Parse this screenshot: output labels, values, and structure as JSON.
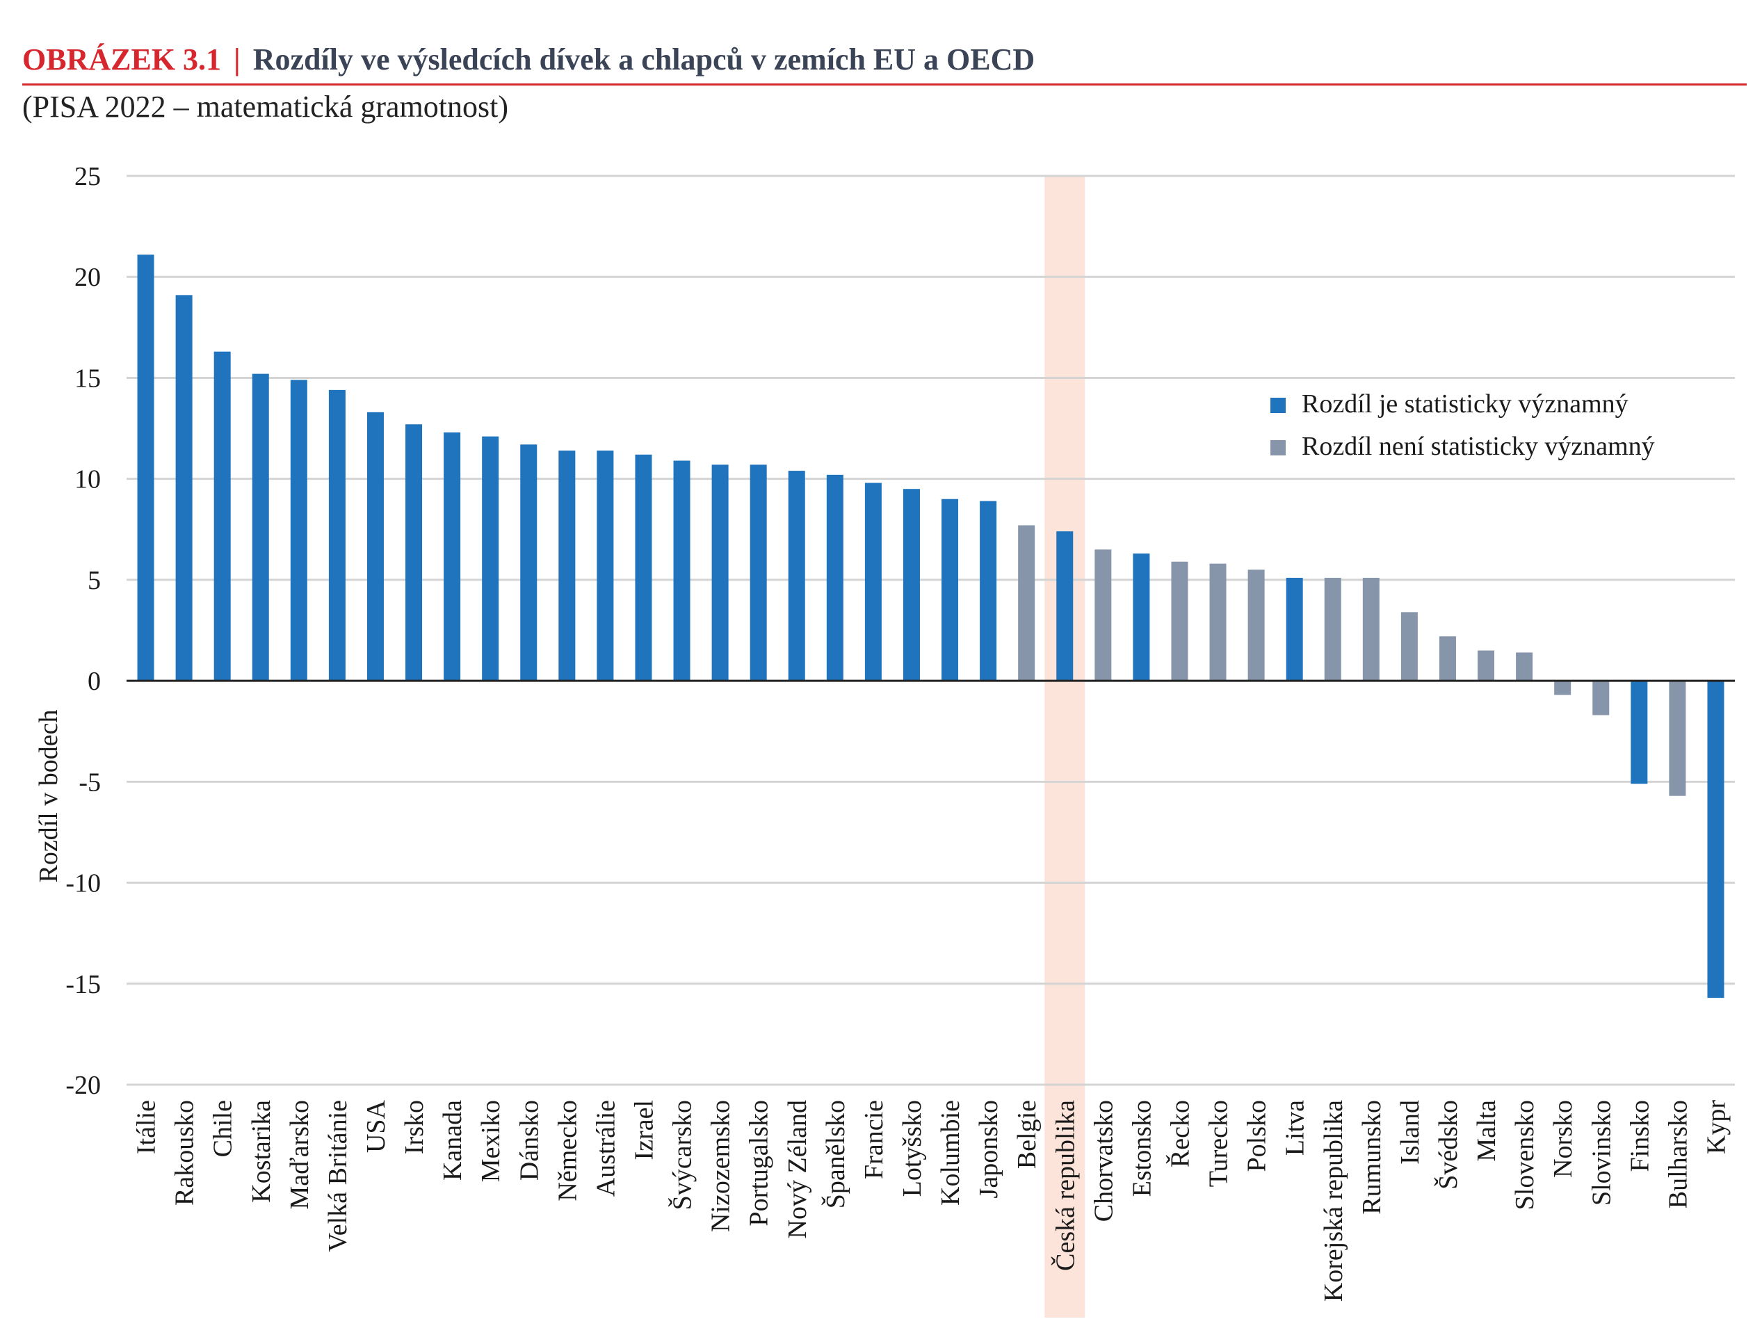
{
  "figure": {
    "label": "OBRÁZEK  3.1",
    "separator": "|",
    "title": "Rozdíly ve výsledcích dívek a chlapců v zemích EU a OECD",
    "subtitle": "(PISA 2022 – matematická gramotnost)"
  },
  "colors": {
    "significant": "#1f74bd",
    "not_significant": "#8795aa",
    "highlight": "#fde4da",
    "accent": "#d7272e",
    "grid": "#d4d4d4",
    "axis": "#222222"
  },
  "chart_data": {
    "type": "bar",
    "title": "",
    "xlabel": "",
    "ylabel": "Rozdíl v bodech",
    "ylim": [
      -20,
      25
    ],
    "yticks": [
      25,
      20,
      15,
      10,
      5,
      0,
      -5,
      -10,
      -15,
      -20
    ],
    "grid": true,
    "legend_position": "right",
    "highlighted_category": "Česká republika",
    "legend": [
      {
        "key": "S",
        "label": "Rozdíl je statisticky významný"
      },
      {
        "key": "N",
        "label": "Rozdíl není statisticky významný"
      }
    ],
    "categories": [
      "Itálie",
      "Rakousko",
      "Chile",
      "Kostarika",
      "Maďarsko",
      "Velká Británie",
      "USA",
      "Irsko",
      "Kanada",
      "Mexiko",
      "Dánsko",
      "Německo",
      "Austrálie",
      "Izrael",
      "Švýcarsko",
      "Nizozemsko",
      "Portugalsko",
      "Nový Zéland",
      "Španělsko",
      "Francie",
      "Lotyšsko",
      "Kolumbie",
      "Japonsko",
      "Belgie",
      "Česká republika",
      "Chorvatsko",
      "Estonsko",
      "Řecko",
      "Turecko",
      "Polsko",
      "Litva",
      "Korejská republika",
      "Rumunsko",
      "Island",
      "Švédsko",
      "Malta",
      "Slovensko",
      "Norsko",
      "Slovinsko",
      "Finsko",
      "Bulharsko",
      "Kypr"
    ],
    "values": [
      21.1,
      19.1,
      16.3,
      15.2,
      14.9,
      14.4,
      13.3,
      12.7,
      12.3,
      12.1,
      11.7,
      11.4,
      11.4,
      11.2,
      10.9,
      10.7,
      10.7,
      10.4,
      10.2,
      9.8,
      9.5,
      9.0,
      8.9,
      7.7,
      7.4,
      6.5,
      6.3,
      5.9,
      5.8,
      5.5,
      5.1,
      5.1,
      5.1,
      3.4,
      2.2,
      1.5,
      1.4,
      -0.7,
      -1.7,
      -5.1,
      -5.7,
      -15.7
    ],
    "significance": [
      "S",
      "S",
      "S",
      "S",
      "S",
      "S",
      "S",
      "S",
      "S",
      "S",
      "S",
      "S",
      "S",
      "S",
      "S",
      "S",
      "S",
      "S",
      "S",
      "S",
      "S",
      "S",
      "S",
      "N",
      "S",
      "N",
      "S",
      "N",
      "N",
      "N",
      "S",
      "N",
      "N",
      "N",
      "N",
      "N",
      "N",
      "N",
      "N",
      "S",
      "N",
      "S"
    ]
  }
}
